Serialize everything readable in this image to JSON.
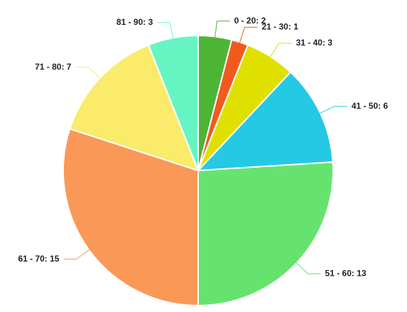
{
  "chart_data": {
    "type": "pie",
    "labels": [
      "0 - 20: 2",
      "21 - 30: 1",
      "31 - 40: 3",
      "41 - 50: 6",
      "51 - 60: 13",
      "61 - 70: 15",
      "71 - 80: 7",
      "81 - 90: 3"
    ],
    "values": [
      2,
      1,
      3,
      6,
      13,
      15,
      7,
      3
    ],
    "colors": [
      "#4db535",
      "#f05a1f",
      "#e0e000",
      "#26c9e3",
      "#66e36e",
      "#fa9858",
      "#fbeb6a",
      "#66f5c2"
    ]
  }
}
